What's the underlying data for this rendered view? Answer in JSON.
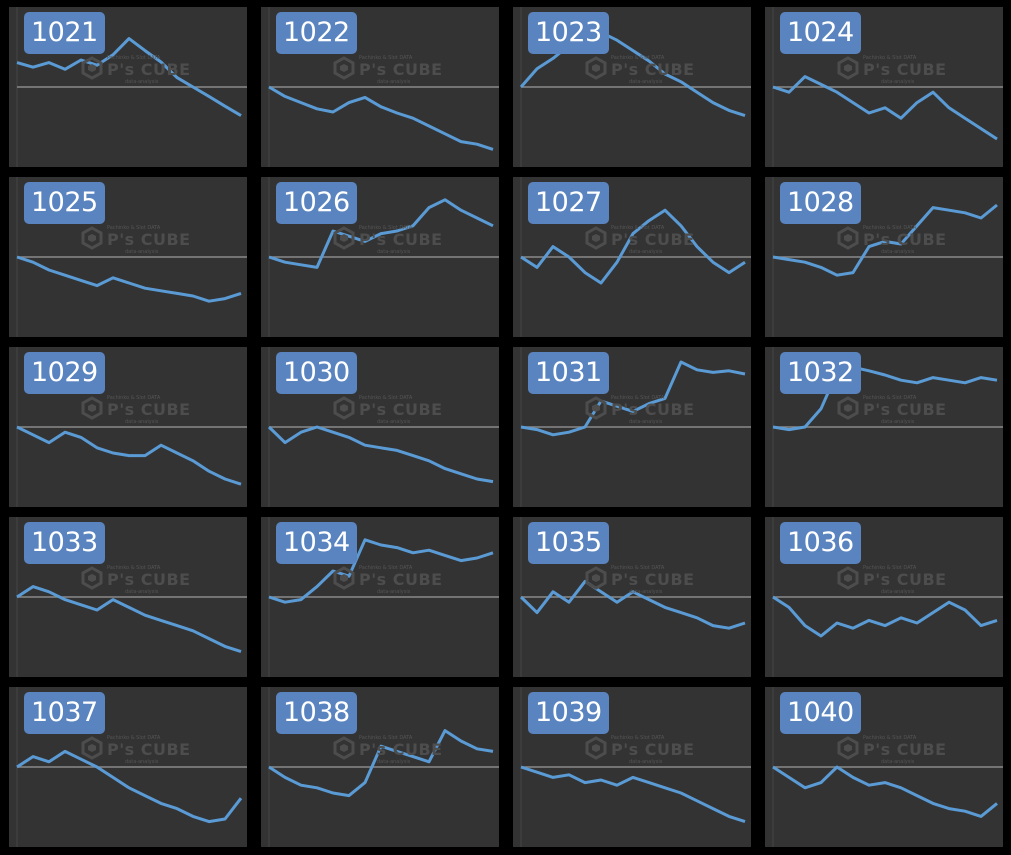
{
  "watermark": {
    "brand": "P's CUBE",
    "top_text": "Pachinko & Slot DATA",
    "sub_text": "data-analysis"
  },
  "colors": {
    "panel_bg": "#333333",
    "line": "#5b9bd5",
    "baseline": "#8a8a8a",
    "badge": "#5a84c0"
  },
  "chart_data": [
    {
      "type": "line",
      "label": "1021",
      "y": [
        0.47,
        0.38,
        0.47,
        0.34,
        0.52,
        0.42,
        0.62,
        0.93,
        0.7,
        0.48,
        0.18,
        0.0,
        -0.18,
        -0.37,
        -0.55
      ]
    },
    {
      "type": "line",
      "label": "1022",
      "y": [
        0.0,
        -0.18,
        -0.3,
        -0.42,
        -0.48,
        -0.3,
        -0.2,
        -0.38,
        -0.5,
        -0.6,
        -0.75,
        -0.9,
        -1.05,
        -1.1,
        -1.2
      ]
    },
    {
      "type": "line",
      "label": "1023",
      "y": [
        0.0,
        0.35,
        0.55,
        0.8,
        1.2,
        1.05,
        0.9,
        0.7,
        0.5,
        0.25,
        0.1,
        -0.1,
        -0.3,
        -0.45,
        -0.55
      ]
    },
    {
      "type": "line",
      "label": "1024",
      "y": [
        0.0,
        -0.1,
        0.2,
        0.05,
        -0.1,
        -0.3,
        -0.5,
        -0.4,
        -0.6,
        -0.3,
        -0.1,
        -0.4,
        -0.6,
        -0.8,
        -1.0
      ]
    },
    {
      "type": "line",
      "label": "1025",
      "y": [
        0.0,
        -0.1,
        -0.25,
        -0.35,
        -0.45,
        -0.55,
        -0.4,
        -0.5,
        -0.6,
        -0.65,
        -0.7,
        -0.75,
        -0.85,
        -0.8,
        -0.7
      ]
    },
    {
      "type": "line",
      "label": "1026",
      "y": [
        0.0,
        -0.1,
        -0.15,
        -0.2,
        0.5,
        0.4,
        0.3,
        0.45,
        0.5,
        0.6,
        0.95,
        1.1,
        0.9,
        0.75,
        0.6
      ]
    },
    {
      "type": "line",
      "label": "1027",
      "y": [
        0.0,
        -0.2,
        0.2,
        0.0,
        -0.3,
        -0.5,
        -0.1,
        0.45,
        0.7,
        0.9,
        0.6,
        0.2,
        -0.1,
        -0.3,
        -0.1
      ]
    },
    {
      "type": "line",
      "label": "1028",
      "y": [
        0.0,
        -0.05,
        -0.1,
        -0.2,
        -0.35,
        -0.3,
        0.2,
        0.3,
        0.25,
        0.6,
        0.95,
        0.9,
        0.85,
        0.75,
        1.0
      ]
    },
    {
      "type": "line",
      "label": "1029",
      "y": [
        0.0,
        -0.15,
        -0.3,
        -0.1,
        -0.2,
        -0.4,
        -0.5,
        -0.55,
        -0.55,
        -0.35,
        -0.5,
        -0.65,
        -0.85,
        -1.0,
        -1.1
      ]
    },
    {
      "type": "line",
      "label": "1030",
      "y": [
        0.0,
        -0.3,
        -0.1,
        0.0,
        -0.1,
        -0.2,
        -0.35,
        -0.4,
        -0.45,
        -0.55,
        -0.65,
        -0.8,
        -0.9,
        -1.0,
        -1.05
      ]
    },
    {
      "type": "line",
      "label": "1031",
      "y": [
        0.0,
        -0.05,
        -0.15,
        -0.1,
        0.0,
        0.5,
        0.4,
        0.3,
        0.45,
        0.55,
        1.25,
        1.1,
        1.05,
        1.08,
        1.02
      ]
    },
    {
      "type": "line",
      "label": "1032",
      "y": [
        0.0,
        -0.05,
        0.0,
        0.35,
        1.05,
        1.15,
        1.08,
        1.0,
        0.9,
        0.85,
        0.95,
        0.9,
        0.85,
        0.95,
        0.9
      ]
    },
    {
      "type": "line",
      "label": "1033",
      "y": [
        0.0,
        0.2,
        0.1,
        -0.05,
        -0.15,
        -0.25,
        -0.05,
        -0.2,
        -0.35,
        -0.45,
        -0.55,
        -0.65,
        -0.8,
        -0.95,
        -1.05
      ]
    },
    {
      "type": "line",
      "label": "1034",
      "y": [
        0.0,
        -0.1,
        -0.05,
        0.2,
        0.5,
        0.4,
        1.1,
        1.0,
        0.95,
        0.85,
        0.9,
        0.8,
        0.7,
        0.75,
        0.85
      ]
    },
    {
      "type": "line",
      "label": "1035",
      "y": [
        0.0,
        -0.3,
        0.1,
        -0.1,
        0.3,
        0.1,
        -0.1,
        0.1,
        -0.05,
        -0.2,
        -0.3,
        -0.4,
        -0.55,
        -0.6,
        -0.5
      ]
    },
    {
      "type": "line",
      "label": "1036",
      "y": [
        0.0,
        -0.2,
        -0.55,
        -0.75,
        -0.5,
        -0.6,
        -0.45,
        -0.55,
        -0.4,
        -0.5,
        -0.3,
        -0.1,
        -0.25,
        -0.55,
        -0.45
      ]
    },
    {
      "type": "line",
      "label": "1037",
      "y": [
        0.0,
        0.2,
        0.1,
        0.3,
        0.15,
        0.0,
        -0.2,
        -0.4,
        -0.55,
        -0.7,
        -0.8,
        -0.95,
        -1.05,
        -1.0,
        -0.6
      ]
    },
    {
      "type": "line",
      "label": "1038",
      "y": [
        0.0,
        -0.2,
        -0.35,
        -0.4,
        -0.5,
        -0.55,
        -0.3,
        0.4,
        0.3,
        0.2,
        0.1,
        0.7,
        0.5,
        0.35,
        0.3
      ]
    },
    {
      "type": "line",
      "label": "1039",
      "y": [
        0.0,
        -0.1,
        -0.2,
        -0.15,
        -0.3,
        -0.25,
        -0.35,
        -0.2,
        -0.3,
        -0.4,
        -0.5,
        -0.65,
        -0.8,
        -0.95,
        -1.05
      ]
    },
    {
      "type": "line",
      "label": "1040",
      "y": [
        0.0,
        -0.2,
        -0.4,
        -0.3,
        0.0,
        -0.2,
        -0.35,
        -0.3,
        -0.4,
        -0.55,
        -0.7,
        -0.8,
        -0.85,
        -0.95,
        -0.7
      ]
    }
  ]
}
